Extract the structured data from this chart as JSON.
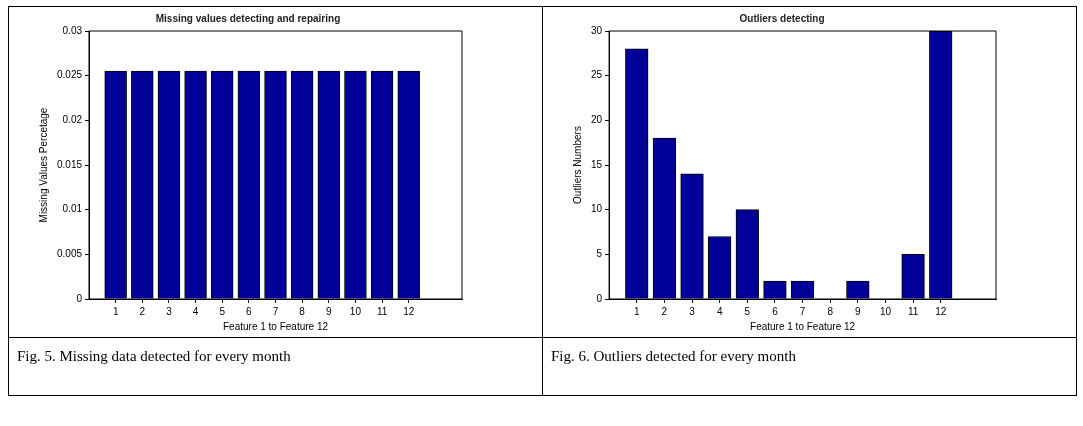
{
  "chart_data": [
    {
      "type": "bar",
      "title": "Missing values detecting and repairing",
      "xlabel": "Feature 1 to Feature 12",
      "ylabel": "Missing Values Percetage",
      "x": [
        1,
        2,
        3,
        4,
        5,
        6,
        7,
        8,
        9,
        10,
        11,
        12
      ],
      "values": [
        0.0255,
        0.0255,
        0.0255,
        0.0255,
        0.0255,
        0.0255,
        0.0255,
        0.0255,
        0.0255,
        0.0255,
        0.0255,
        0.0255
      ],
      "color": "#000099",
      "xlim": [
        0,
        14
      ],
      "xticks": [
        1,
        2,
        3,
        4,
        5,
        6,
        7,
        8,
        9,
        10,
        11,
        12
      ],
      "ylim": [
        0,
        0.03
      ],
      "yticks": [
        0,
        0.005,
        0.01,
        0.015,
        0.02,
        0.025,
        0.03
      ],
      "annotations": [
        "Fig. 5. Missing data detected for every month"
      ]
    },
    {
      "type": "bar",
      "title": "Outliers detecting",
      "xlabel": "Feature 1 to Feature 12",
      "ylabel": "Outliers Numbers",
      "x": [
        1,
        2,
        3,
        4,
        5,
        6,
        7,
        8,
        9,
        10,
        11,
        12
      ],
      "values": [
        28,
        18,
        14,
        7,
        10,
        2,
        2,
        0,
        2,
        0,
        5,
        30
      ],
      "color": "#000099",
      "xlim": [
        0,
        14
      ],
      "xticks": [
        1,
        2,
        3,
        4,
        5,
        6,
        7,
        8,
        9,
        10,
        11,
        12
      ],
      "ylim": [
        0,
        30
      ],
      "yticks": [
        0,
        5,
        10,
        15,
        20,
        25,
        30
      ],
      "annotations": [
        "Fig. 6. Outliers detected for every month"
      ]
    }
  ]
}
